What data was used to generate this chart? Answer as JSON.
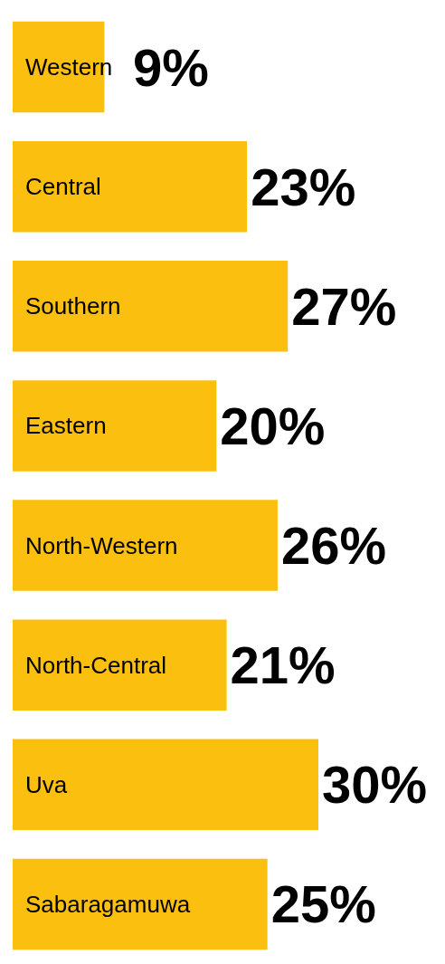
{
  "chart_data": {
    "type": "bar",
    "orientation": "horizontal",
    "categories": [
      "Western",
      "Central",
      "Southern",
      "Eastern",
      "North-Western",
      "North-Central",
      "Uva",
      "Sabaragamuwa"
    ],
    "values": [
      9,
      23,
      27,
      20,
      26,
      21,
      30,
      25
    ],
    "value_labels": [
      "9%",
      "23%",
      "27%",
      "20%",
      "26%",
      "21%",
      "30%",
      "25%"
    ],
    "color": "#fbbf0f"
  }
}
